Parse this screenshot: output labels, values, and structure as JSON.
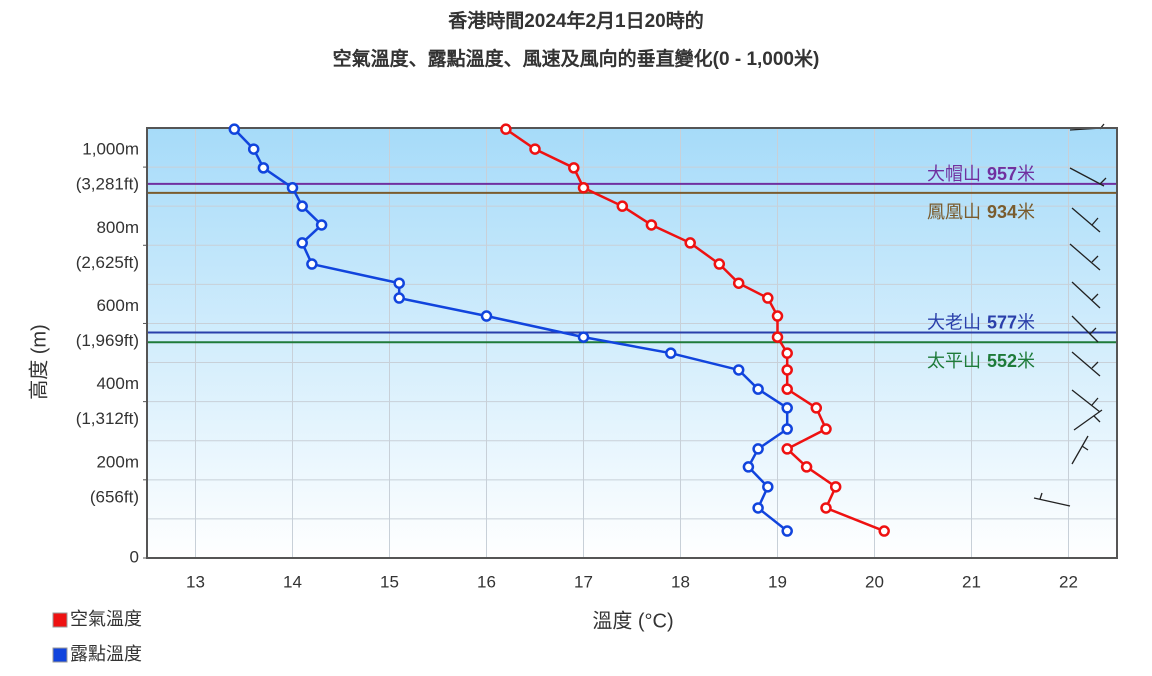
{
  "chart_data": {
    "type": "line",
    "title": "香港時間2024年2月1日20時的",
    "subtitle": "空氣溫度、露點溫度、風速及風向的垂直變化(0 - 1,000米)",
    "x_label": "溫度 (°C)",
    "y_label": "高度 (m)",
    "xlim": [
      12.5,
      22.5
    ],
    "xticks": [
      13,
      14,
      15,
      16,
      17,
      18,
      19,
      20,
      21,
      22
    ],
    "ylim": [
      0,
      1100
    ],
    "yticks": [
      0,
      {
        "value": 200,
        "label": "200m",
        "sublabel": "(656ft)"
      },
      {
        "value": 400,
        "label": "400m",
        "sublabel": "(1,312ft)"
      },
      {
        "value": 600,
        "label": "600m",
        "sublabel": "(1,969ft)"
      },
      {
        "value": 800,
        "label": "800m",
        "sublabel": "(2,625ft)"
      },
      {
        "value": 1000,
        "label": "1,000m",
        "sublabel": "(3,281ft)"
      }
    ],
    "ygrid": [
      100,
      200,
      300,
      400,
      500,
      600,
      700,
      800,
      900,
      1000,
      1100
    ],
    "grid": true,
    "y": [
      1097,
      1046,
      998,
      947,
      900,
      852,
      806,
      752,
      703,
      665,
      619,
      565,
      524,
      481,
      432,
      384,
      330,
      279,
      233,
      182,
      128,
      69
    ],
    "series": [
      {
        "name": "空氣溫度",
        "color": "#ee1111",
        "values": [
          16.2,
          16.5,
          16.9,
          17.0,
          17.4,
          17.7,
          18.1,
          18.4,
          18.6,
          18.9,
          19.0,
          19.0,
          19.1,
          19.1,
          19.1,
          19.4,
          19.5,
          19.1,
          19.3,
          19.6,
          19.5,
          20.1
        ]
      },
      {
        "name": "露點溫度",
        "color": "#1144dd",
        "values": [
          13.4,
          13.6,
          13.7,
          14.0,
          14.1,
          14.3,
          14.1,
          14.2,
          15.1,
          15.1,
          16.0,
          17.0,
          17.9,
          18.6,
          18.8,
          19.1,
          19.1,
          18.8,
          18.7,
          18.9,
          18.8,
          19.1
        ]
      }
    ],
    "reference_lines": [
      {
        "name": "大帽山",
        "value": 957,
        "unit": "米",
        "color": "#7030a0"
      },
      {
        "name": "鳳凰山",
        "value": 934,
        "unit": "米",
        "color": "#7a5c2e"
      },
      {
        "name": "大老山",
        "value": 577,
        "unit": "米",
        "color": "#2a3faa"
      },
      {
        "name": "太平山",
        "value": 552,
        "unit": "米",
        "color": "#1e7b3a"
      }
    ]
  }
}
